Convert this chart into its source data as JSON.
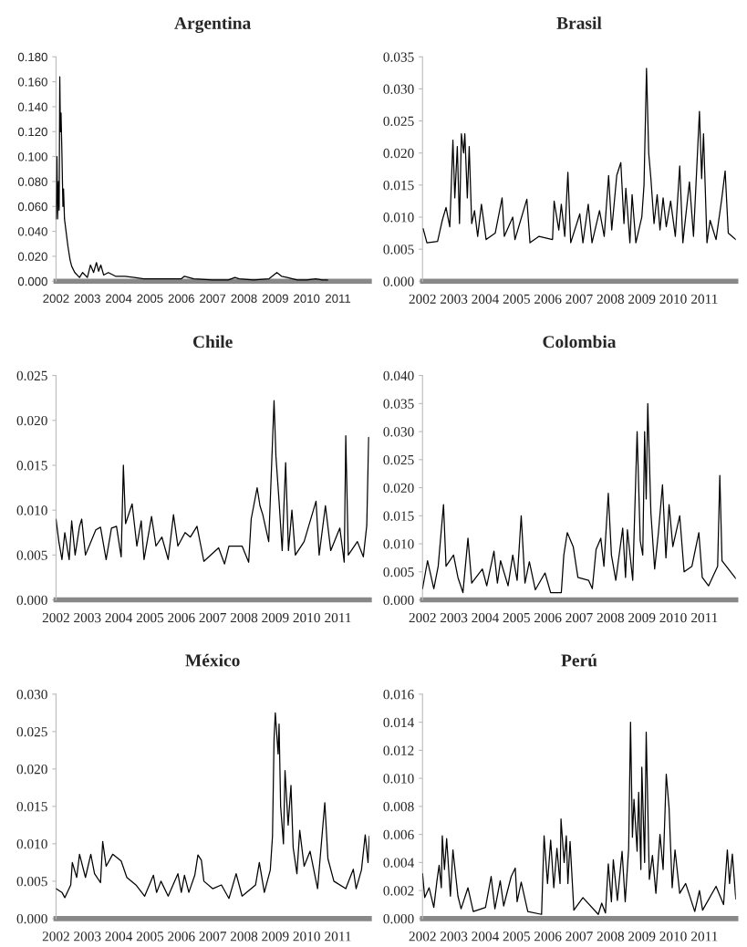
{
  "chart_data": [
    {
      "type": "line",
      "title": "Argentina",
      "xlim": [
        2002,
        2012
      ],
      "xticks": [
        2002,
        2003,
        2004,
        2005,
        2006,
        2007,
        2008,
        2009,
        2010,
        2011
      ],
      "ylim": [
        0,
        0.18
      ],
      "yticks": [
        {
          "value": 0,
          "label": "0.000"
        },
        {
          "value": 0.02,
          "label": "0.020"
        },
        {
          "value": 0.04,
          "label": "0.040"
        },
        {
          "value": 0.06,
          "label": "0.060"
        },
        {
          "value": 0.08,
          "label": "0.080"
        },
        {
          "value": 0.1,
          "label": "0.100"
        },
        {
          "value": 0.12,
          "label": "0.120"
        },
        {
          "value": 0.14,
          "label": "0.140"
        },
        {
          "value": 0.16,
          "label": "0.160"
        },
        {
          "value": 0.18,
          "label": "0.180"
        }
      ],
      "series": [
        {
          "color": "#000000",
          "x": [
            2002.0,
            2002.03,
            2002.05,
            2002.08,
            2002.1,
            2002.12,
            2002.14,
            2002.16,
            2002.19,
            2002.22,
            2002.24,
            2002.27,
            2002.32,
            2002.38,
            2002.45,
            2002.5,
            2002.6,
            2002.75,
            2002.85,
            2003.0,
            2003.1,
            2003.2,
            2003.29,
            2003.36,
            2003.43,
            2003.52,
            2003.67,
            2003.9,
            2004.2,
            2004.5,
            2004.8,
            2005.5,
            2006.0,
            2006.1,
            2006.4,
            2007.0,
            2007.5,
            2007.71,
            2007.85,
            2008.3,
            2008.8,
            2009.05,
            2009.2,
            2009.38,
            2009.7,
            2010.0,
            2010.29,
            2010.5,
            2010.67
          ],
          "values": [
            0.05,
            0.1,
            0.05,
            0.08,
            0.057,
            0.164,
            0.12,
            0.135,
            0.1,
            0.06,
            0.074,
            0.05,
            0.04,
            0.028,
            0.017,
            0.012,
            0.007,
            0.003,
            0.007,
            0.003,
            0.013,
            0.007,
            0.015,
            0.008,
            0.013,
            0.005,
            0.007,
            0.004,
            0.004,
            0.003,
            0.002,
            0.002,
            0.002,
            0.004,
            0.002,
            0.001,
            0.001,
            0.003,
            0.002,
            0.001,
            0.002,
            0.007,
            0.004,
            0.003,
            0.001,
            0.001,
            0.002,
            0.001,
            0.001
          ]
        }
      ]
    },
    {
      "type": "line",
      "title": "Brasil",
      "xlim": [
        2002,
        2012
      ],
      "xticks": [
        2002,
        2003,
        2004,
        2005,
        2006,
        2007,
        2008,
        2009,
        2010,
        2011
      ],
      "ylim": [
        0,
        0.035
      ],
      "yticks": [
        {
          "value": 0,
          "label": "0.000"
        },
        {
          "value": 0.005,
          "label": "0.005"
        },
        {
          "value": 0.01,
          "label": "0.010"
        },
        {
          "value": 0.015,
          "label": "0.015"
        },
        {
          "value": 0.02,
          "label": "0.020"
        },
        {
          "value": 0.025,
          "label": "0.025"
        },
        {
          "value": 0.03,
          "label": "0.030"
        },
        {
          "value": 0.035,
          "label": "0.035"
        }
      ],
      "series": [
        {
          "color": "#000000",
          "x": [
            2002.02,
            2002.14,
            2002.48,
            2002.63,
            2002.75,
            2002.87,
            2002.97,
            2003.03,
            2003.11,
            2003.18,
            2003.24,
            2003.31,
            2003.35,
            2003.43,
            2003.49,
            2003.57,
            2003.66,
            2003.76,
            2003.88,
            2004.03,
            2004.32,
            2004.54,
            2004.61,
            2004.88,
            2004.95,
            2005.33,
            2005.43,
            2005.72,
            2006.15,
            2006.2,
            2006.35,
            2006.43,
            2006.54,
            2006.64,
            2006.73,
            2007.02,
            2007.12,
            2007.29,
            2007.41,
            2007.65,
            2007.8,
            2007.94,
            2008.04,
            2008.2,
            2008.33,
            2008.43,
            2008.49,
            2008.62,
            2008.69,
            2008.81,
            2009.0,
            2009.07,
            2009.15,
            2009.22,
            2009.29,
            2009.39,
            2009.49,
            2009.58,
            2009.68,
            2009.78,
            2009.92,
            2010.07,
            2010.21,
            2010.31,
            2010.52,
            2010.65,
            2010.84,
            2010.91,
            2010.97,
            2011.08,
            2011.18,
            2011.37,
            2011.55,
            2011.66,
            2011.76,
            2012.0
          ],
          "values": [
            0.0082,
            0.006,
            0.0062,
            0.0095,
            0.0115,
            0.0085,
            0.022,
            0.013,
            0.021,
            0.009,
            0.023,
            0.02,
            0.023,
            0.013,
            0.021,
            0.009,
            0.011,
            0.007,
            0.012,
            0.0065,
            0.0075,
            0.013,
            0.007,
            0.01,
            0.0065,
            0.0128,
            0.006,
            0.007,
            0.0065,
            0.0125,
            0.008,
            0.012,
            0.007,
            0.017,
            0.006,
            0.0105,
            0.006,
            0.012,
            0.006,
            0.011,
            0.007,
            0.0165,
            0.008,
            0.0165,
            0.0185,
            0.009,
            0.0145,
            0.006,
            0.0135,
            0.006,
            0.01,
            0.015,
            0.0332,
            0.02,
            0.016,
            0.009,
            0.0135,
            0.008,
            0.013,
            0.0085,
            0.0125,
            0.007,
            0.018,
            0.006,
            0.0155,
            0.007,
            0.0265,
            0.016,
            0.023,
            0.006,
            0.0095,
            0.0065,
            0.0128,
            0.0172,
            0.0075,
            0.0065
          ]
        }
      ]
    },
    {
      "type": "line",
      "title": "Chile",
      "xlim": [
        2002,
        2012
      ],
      "xticks": [
        2002,
        2003,
        2004,
        2005,
        2006,
        2007,
        2008,
        2009,
        2010,
        2011
      ],
      "ylim": [
        0,
        0.025
      ],
      "yticks": [
        {
          "value": 0,
          "label": "0.000"
        },
        {
          "value": 0.005,
          "label": "0.005"
        },
        {
          "value": 0.01,
          "label": "0.010"
        },
        {
          "value": 0.015,
          "label": "0.015"
        },
        {
          "value": 0.02,
          "label": "0.020"
        },
        {
          "value": 0.025,
          "label": "0.025"
        }
      ],
      "series": [
        {
          "color": "#000000",
          "x": [
            2002.0,
            2002.09,
            2002.19,
            2002.28,
            2002.42,
            2002.5,
            2002.61,
            2002.75,
            2002.82,
            2002.94,
            2003.27,
            2003.42,
            2003.6,
            2003.77,
            2003.93,
            2004.08,
            2004.15,
            2004.22,
            2004.43,
            2004.58,
            2004.72,
            2004.81,
            2005.05,
            2005.19,
            2005.38,
            2005.58,
            2005.75,
            2005.89,
            2006.12,
            2006.29,
            2006.5,
            2006.72,
            2007.19,
            2007.38,
            2007.52,
            2007.94,
            2008.15,
            2008.23,
            2008.42,
            2008.51,
            2008.6,
            2008.79,
            2008.96,
            2009.02,
            2009.12,
            2009.22,
            2009.33,
            2009.42,
            2009.53,
            2009.64,
            2009.92,
            2010.3,
            2010.4,
            2010.6,
            2010.77,
            2011.06,
            2011.2,
            2011.25,
            2011.33,
            2011.62,
            2011.81,
            2011.92,
            2011.98
          ],
          "values": [
            0.009,
            0.0065,
            0.0045,
            0.0075,
            0.0045,
            0.0088,
            0.005,
            0.0082,
            0.009,
            0.005,
            0.0078,
            0.0081,
            0.0045,
            0.008,
            0.0082,
            0.0048,
            0.015,
            0.0085,
            0.0107,
            0.006,
            0.0088,
            0.0045,
            0.0093,
            0.006,
            0.007,
            0.0045,
            0.0095,
            0.006,
            0.0075,
            0.007,
            0.0082,
            0.0043,
            0.0058,
            0.004,
            0.006,
            0.006,
            0.0042,
            0.009,
            0.0125,
            0.0105,
            0.0095,
            0.0065,
            0.0222,
            0.016,
            0.011,
            0.0055,
            0.0153,
            0.0055,
            0.01,
            0.005,
            0.0065,
            0.011,
            0.005,
            0.0105,
            0.0055,
            0.008,
            0.0042,
            0.0183,
            0.005,
            0.0065,
            0.0048,
            0.0083,
            0.0181
          ]
        }
      ]
    },
    {
      "type": "line",
      "title": "Colombia",
      "xlim": [
        2002,
        2012
      ],
      "xticks": [
        2002,
        2003,
        2004,
        2005,
        2006,
        2007,
        2008,
        2009,
        2010,
        2011
      ],
      "ylim": [
        0,
        0.04
      ],
      "yticks": [
        {
          "value": 0,
          "label": "0.000"
        },
        {
          "value": 0.005,
          "label": "0.005"
        },
        {
          "value": 0.01,
          "label": "0.010"
        },
        {
          "value": 0.015,
          "label": "0.015"
        },
        {
          "value": 0.02,
          "label": "0.020"
        },
        {
          "value": 0.025,
          "label": "0.025"
        },
        {
          "value": 0.03,
          "label": "0.030"
        },
        {
          "value": 0.035,
          "label": "0.035"
        },
        {
          "value": 0.04,
          "label": "0.040"
        }
      ],
      "series": [
        {
          "color": "#000000",
          "x": [
            2002.0,
            2002.16,
            2002.36,
            2002.5,
            2002.67,
            2002.75,
            2002.99,
            2003.13,
            2003.29,
            2003.45,
            2003.57,
            2003.91,
            2004.05,
            2004.28,
            2004.39,
            2004.49,
            2004.73,
            2004.88,
            2005.02,
            2005.15,
            2005.27,
            2005.41,
            2005.6,
            2005.91,
            2006.09,
            2006.43,
            2006.51,
            2006.62,
            2006.81,
            2006.96,
            2007.3,
            2007.42,
            2007.54,
            2007.69,
            2007.79,
            2007.93,
            2008.03,
            2008.17,
            2008.39,
            2008.48,
            2008.54,
            2008.71,
            2008.85,
            2008.95,
            2009.03,
            2009.09,
            2009.14,
            2009.19,
            2009.29,
            2009.41,
            2009.53,
            2009.66,
            2009.77,
            2009.87,
            2009.99,
            2010.21,
            2010.35,
            2010.6,
            2010.82,
            2010.93,
            2011.13,
            2011.42,
            2011.49,
            2011.56,
            2012.0
          ],
          "values": [
            0.002,
            0.007,
            0.002,
            0.006,
            0.017,
            0.006,
            0.008,
            0.004,
            0.0013,
            0.011,
            0.003,
            0.0055,
            0.0025,
            0.0087,
            0.003,
            0.007,
            0.0025,
            0.008,
            0.0035,
            0.015,
            0.003,
            0.0068,
            0.0018,
            0.0048,
            0.0013,
            0.0013,
            0.008,
            0.012,
            0.0095,
            0.004,
            0.0035,
            0.002,
            0.009,
            0.011,
            0.006,
            0.019,
            0.008,
            0.0035,
            0.0128,
            0.004,
            0.0125,
            0.0035,
            0.03,
            0.0105,
            0.008,
            0.03,
            0.018,
            0.035,
            0.0155,
            0.0055,
            0.012,
            0.0205,
            0.0075,
            0.017,
            0.0095,
            0.015,
            0.005,
            0.006,
            0.012,
            0.004,
            0.0025,
            0.006,
            0.0222,
            0.007,
            0.0038
          ]
        }
      ]
    },
    {
      "type": "line",
      "title": "México",
      "xlim": [
        2002,
        2012
      ],
      "xticks": [
        2002,
        2003,
        2004,
        2005,
        2006,
        2007,
        2008,
        2009,
        2010,
        2011
      ],
      "ylim": [
        0,
        0.03
      ],
      "yticks": [
        {
          "value": 0,
          "label": "0.000"
        },
        {
          "value": 0.005,
          "label": "0.005"
        },
        {
          "value": 0.01,
          "label": "0.010"
        },
        {
          "value": 0.015,
          "label": "0.015"
        },
        {
          "value": 0.02,
          "label": "0.020"
        },
        {
          "value": 0.025,
          "label": "0.025"
        },
        {
          "value": 0.03,
          "label": "0.030"
        }
      ],
      "series": [
        {
          "color": "#000000",
          "x": [
            2002.0,
            2002.19,
            2002.28,
            2002.47,
            2002.52,
            2002.66,
            2002.75,
            2002.94,
            2003.11,
            2003.23,
            2003.42,
            2003.49,
            2003.6,
            2003.81,
            2004.08,
            2004.26,
            2004.55,
            2004.83,
            2005.11,
            2005.21,
            2005.35,
            2005.58,
            2005.89,
            2006.0,
            2006.1,
            2006.24,
            2006.43,
            2006.53,
            2006.64,
            2006.72,
            2007.0,
            2007.28,
            2007.52,
            2007.75,
            2007.94,
            2008.37,
            2008.49,
            2008.65,
            2008.84,
            2008.91,
            2008.96,
            2009.0,
            2009.09,
            2009.12,
            2009.17,
            2009.26,
            2009.31,
            2009.41,
            2009.5,
            2009.57,
            2009.69,
            2009.78,
            2009.92,
            2010.11,
            2010.35,
            2010.58,
            2010.68,
            2010.87,
            2011.25,
            2011.49,
            2011.58,
            2011.75,
            2011.87,
            2011.96,
            2012.0
          ],
          "values": [
            0.004,
            0.0035,
            0.0028,
            0.0045,
            0.0075,
            0.0055,
            0.0086,
            0.0055,
            0.0086,
            0.006,
            0.0048,
            0.0103,
            0.007,
            0.0086,
            0.0077,
            0.0055,
            0.0045,
            0.003,
            0.0058,
            0.0035,
            0.005,
            0.003,
            0.006,
            0.0035,
            0.0058,
            0.0035,
            0.0058,
            0.0085,
            0.0078,
            0.005,
            0.004,
            0.0045,
            0.0027,
            0.006,
            0.003,
            0.0045,
            0.0075,
            0.0035,
            0.0065,
            0.011,
            0.024,
            0.0275,
            0.022,
            0.026,
            0.015,
            0.01,
            0.0198,
            0.0125,
            0.0178,
            0.0095,
            0.006,
            0.0118,
            0.007,
            0.009,
            0.004,
            0.0155,
            0.008,
            0.005,
            0.004,
            0.0066,
            0.004,
            0.0065,
            0.0112,
            0.0075,
            0.011
          ]
        }
      ]
    },
    {
      "type": "line",
      "title": "Perú",
      "xlim": [
        2002,
        2012
      ],
      "xticks": [
        2002,
        2003,
        2004,
        2005,
        2006,
        2007,
        2008,
        2009,
        2010,
        2011
      ],
      "ylim": [
        0,
        0.016
      ],
      "yticks": [
        {
          "value": 0,
          "label": "0.000"
        },
        {
          "value": 0.002,
          "label": "0.002"
        },
        {
          "value": 0.004,
          "label": "0.004"
        },
        {
          "value": 0.006,
          "label": "0.006"
        },
        {
          "value": 0.008,
          "label": "0.008"
        },
        {
          "value": 0.01,
          "label": "0.010"
        },
        {
          "value": 0.012,
          "label": "0.012"
        },
        {
          "value": 0.014,
          "label": "0.014"
        },
        {
          "value": 0.016,
          "label": "0.016"
        }
      ],
      "series": [
        {
          "color": "#000000",
          "x": [
            2002.0,
            2002.07,
            2002.21,
            2002.36,
            2002.46,
            2002.53,
            2002.6,
            2002.63,
            2002.7,
            2002.77,
            2002.89,
            2002.97,
            2003.13,
            2003.23,
            2003.45,
            2003.62,
            2004.01,
            2004.19,
            2004.31,
            2004.48,
            2004.59,
            2004.83,
            2004.96,
            2005.02,
            2005.15,
            2005.36,
            2005.8,
            2005.88,
            2005.99,
            2006.09,
            2006.19,
            2006.29,
            2006.39,
            2006.42,
            2006.52,
            2006.59,
            2006.64,
            2006.71,
            2006.83,
            2007.12,
            2007.61,
            2007.72,
            2007.84,
            2007.93,
            2008.03,
            2008.09,
            2008.22,
            2008.37,
            2008.47,
            2008.58,
            2008.64,
            2008.7,
            2008.75,
            2008.85,
            2008.9,
            2008.97,
            2009.0,
            2009.09,
            2009.14,
            2009.24,
            2009.34,
            2009.45,
            2009.58,
            2009.68,
            2009.78,
            2009.87,
            2009.97,
            2010.06,
            2010.21,
            2010.4,
            2010.69,
            2010.84,
            2010.94,
            2011.37,
            2011.61,
            2011.73,
            2011.8,
            2011.89,
            2012.0
          ],
          "values": [
            0.0032,
            0.0015,
            0.0022,
            0.0008,
            0.0027,
            0.0038,
            0.0022,
            0.0059,
            0.0035,
            0.0057,
            0.0016,
            0.0049,
            0.0016,
            0.0007,
            0.0022,
            0.0005,
            0.0008,
            0.003,
            0.0007,
            0.0027,
            0.0009,
            0.003,
            0.0036,
            0.0012,
            0.0026,
            0.0005,
            0.0003,
            0.0059,
            0.0025,
            0.0056,
            0.0022,
            0.005,
            0.0025,
            0.0071,
            0.004,
            0.0059,
            0.0025,
            0.0055,
            0.0006,
            0.0015,
            0.0003,
            0.0011,
            0.0004,
            0.0039,
            0.0012,
            0.0042,
            0.0013,
            0.0048,
            0.0012,
            0.005,
            0.014,
            0.0058,
            0.0085,
            0.0048,
            0.009,
            0.0035,
            0.0108,
            0.004,
            0.0133,
            0.0028,
            0.0045,
            0.0018,
            0.006,
            0.0035,
            0.0103,
            0.0079,
            0.0022,
            0.0049,
            0.0018,
            0.0025,
            0.0005,
            0.002,
            0.0006,
            0.0023,
            0.001,
            0.0049,
            0.0025,
            0.0046,
            0.0014
          ]
        }
      ]
    }
  ]
}
